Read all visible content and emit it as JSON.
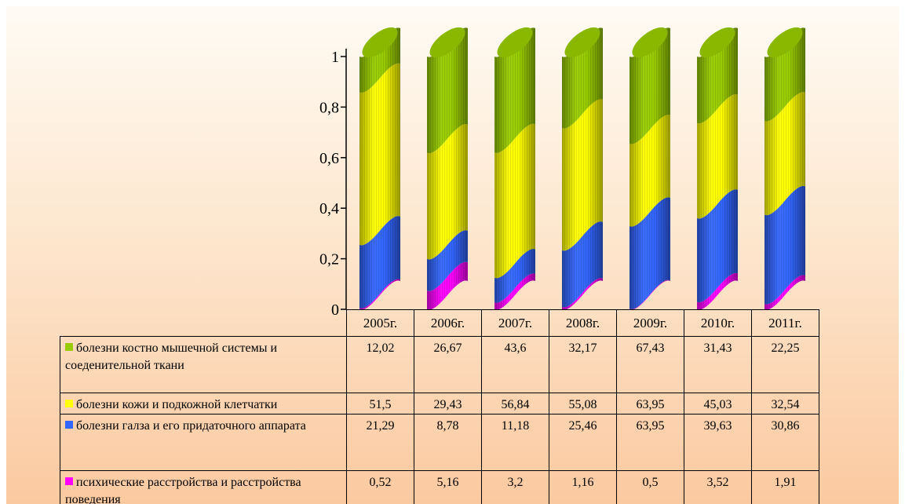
{
  "chart_data": {
    "type": "bar",
    "stacked": true,
    "normalized": true,
    "three_d": "cylinder",
    "categories": [
      "2005г.",
      "2006г.",
      "2007г.",
      "2008г.",
      "2009г.",
      "2010г.",
      "2011г."
    ],
    "yticks": [
      "0",
      "0,2",
      "0,4",
      "0,6",
      "0,8",
      "1"
    ],
    "ylim": [
      0,
      1
    ],
    "legend_placement": "table-below",
    "series": [
      {
        "name": "психические расстройства и расстройства поведения",
        "color": "#ff00ff",
        "values": [
          0.52,
          5.16,
          3.2,
          1.16,
          0.5,
          3.52,
          1.91
        ],
        "labels": [
          "0,52",
          "5,16",
          "3,2",
          "1,16",
          "0,5",
          "3,52",
          "1,91"
        ]
      },
      {
        "name": "болезни галза и его придаточного аппарата",
        "color": "#3366ff",
        "values": [
          21.29,
          8.78,
          11.18,
          25.46,
          63.95,
          39.63,
          30.86
        ],
        "labels": [
          "21,29",
          "8,78",
          "11,18",
          "25,46",
          "63,95",
          "39,63",
          "30,86"
        ]
      },
      {
        "name": "болезни кожи и подкожной клетчатки",
        "color": "#ffff00",
        "values": [
          51.5,
          29.43,
          56.84,
          55.08,
          63.95,
          45.03,
          32.54
        ],
        "labels": [
          "51,5",
          "29,43",
          "56,84",
          "55,08",
          "63,95",
          "45,03",
          "32,54"
        ]
      },
      {
        "name": "болезни костно мышечной системы и соеденительной ткани",
        "color": "#99cc00",
        "values": [
          12.02,
          26.67,
          43.6,
          32.17,
          67.43,
          31.43,
          22.25
        ],
        "labels": [
          "12,02",
          "26,67",
          "43,6",
          "32,17",
          "67,43",
          "31,43",
          "22,25"
        ]
      }
    ]
  }
}
